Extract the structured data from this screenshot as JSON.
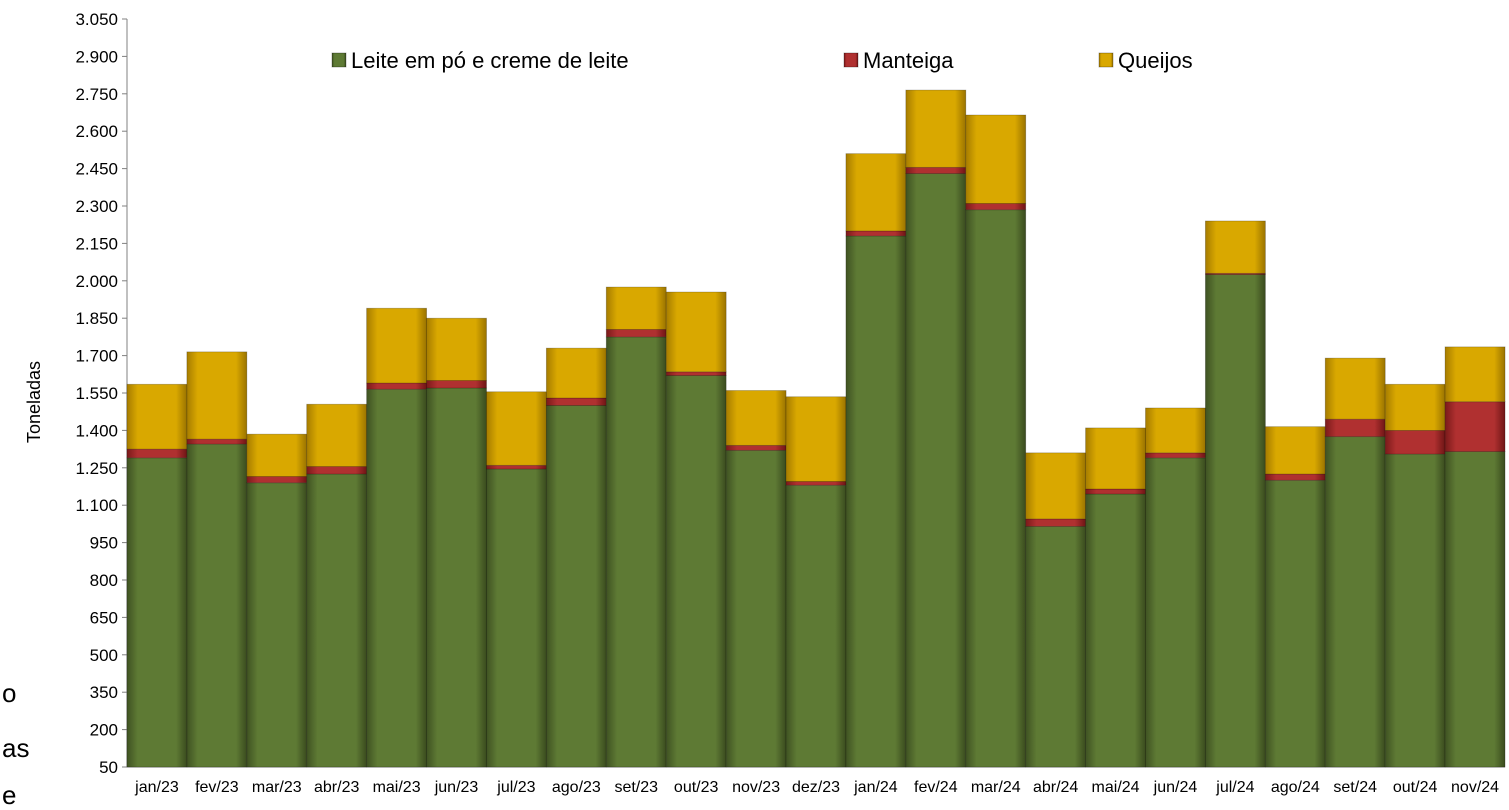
{
  "chart_data": {
    "type": "bar",
    "stacked": true,
    "ylabel": "Toneladas",
    "xlabel": "",
    "title": "",
    "ylim": [
      50,
      3050
    ],
    "ytick_step": 150,
    "legend_position": "top-center",
    "categories": [
      "jan/23",
      "fev/23",
      "mar/23",
      "abr/23",
      "mai/23",
      "jun/23",
      "jul/23",
      "ago/23",
      "set/23",
      "out/23",
      "nov/23",
      "dez/23",
      "jan/24",
      "fev/24",
      "mar/24",
      "abr/24",
      "mai/24",
      "jun/24",
      "jul/24",
      "ago/24",
      "set/24",
      "out/24",
      "nov/24"
    ],
    "series": [
      {
        "name": "Leite em pó e creme de leite",
        "color": "#556b2f",
        "values": [
          1290,
          1345,
          1190,
          1225,
          1565,
          1570,
          1245,
          1500,
          1775,
          1620,
          1320,
          1180,
          2180,
          2430,
          2285,
          1015,
          1145,
          1290,
          2025,
          1200,
          1375,
          1305,
          1315
        ]
      },
      {
        "name": "Manteiga",
        "color": "#b22222",
        "values": [
          35,
          20,
          25,
          30,
          25,
          30,
          15,
          30,
          30,
          15,
          20,
          15,
          20,
          25,
          25,
          30,
          20,
          20,
          5,
          25,
          70,
          95,
          200
        ]
      },
      {
        "name": "Queijos",
        "color": "#d4a000",
        "values": [
          260,
          350,
          170,
          250,
          300,
          250,
          295,
          200,
          170,
          320,
          220,
          340,
          310,
          310,
          355,
          265,
          245,
          180,
          210,
          190,
          245,
          185,
          220
        ]
      }
    ]
  },
  "edge_fragments": [
    "o",
    "as",
    "e"
  ]
}
